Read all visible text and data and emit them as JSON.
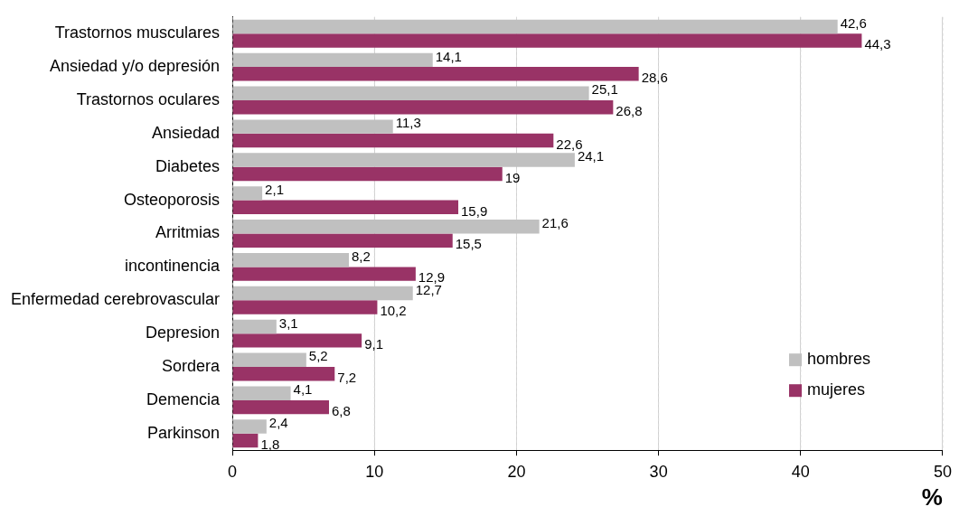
{
  "chart_data": {
    "type": "bar",
    "orientation": "horizontal",
    "xlabel": "%",
    "categories": [
      "Trastornos musculares",
      "Ansiedad y/o depresión",
      "Trastornos oculares",
      "Ansiedad",
      "Diabetes",
      "Osteoporosis",
      "Arritmias",
      "incontinencia",
      "Enfermedad cerebrovascular",
      "Depresion",
      "Sordera",
      "Demencia",
      "Parkinson"
    ],
    "series": [
      {
        "name": "hombres",
        "color": "#c0c0c0",
        "values": [
          42.6,
          14.1,
          25.1,
          11.3,
          24.1,
          2.1,
          21.6,
          8.2,
          12.7,
          3.1,
          5.2,
          4.1,
          2.4
        ],
        "value_labels": [
          "42,6",
          "14,1",
          "25,1",
          "11,3",
          "24,1",
          "2,1",
          "21,6",
          "8,2",
          "12,7",
          "3,1",
          "5,2",
          "4,1",
          "2,4"
        ]
      },
      {
        "name": "mujeres",
        "color": "#993366",
        "values": [
          44.3,
          28.6,
          26.8,
          22.6,
          19,
          15.9,
          15.5,
          12.9,
          10.2,
          9.1,
          7.2,
          6.8,
          1.8
        ],
        "value_labels": [
          "44,3",
          "28,6",
          "26,8",
          "22,6",
          "19",
          "15,9",
          "15,5",
          "12,9",
          "10,2",
          "9,1",
          "7,2",
          "6,8",
          "1,8"
        ]
      }
    ],
    "xlim": [
      0,
      50
    ],
    "xticks": [
      0,
      10,
      20,
      30,
      40,
      50
    ],
    "grid": "x",
    "legend": "bottom right"
  }
}
